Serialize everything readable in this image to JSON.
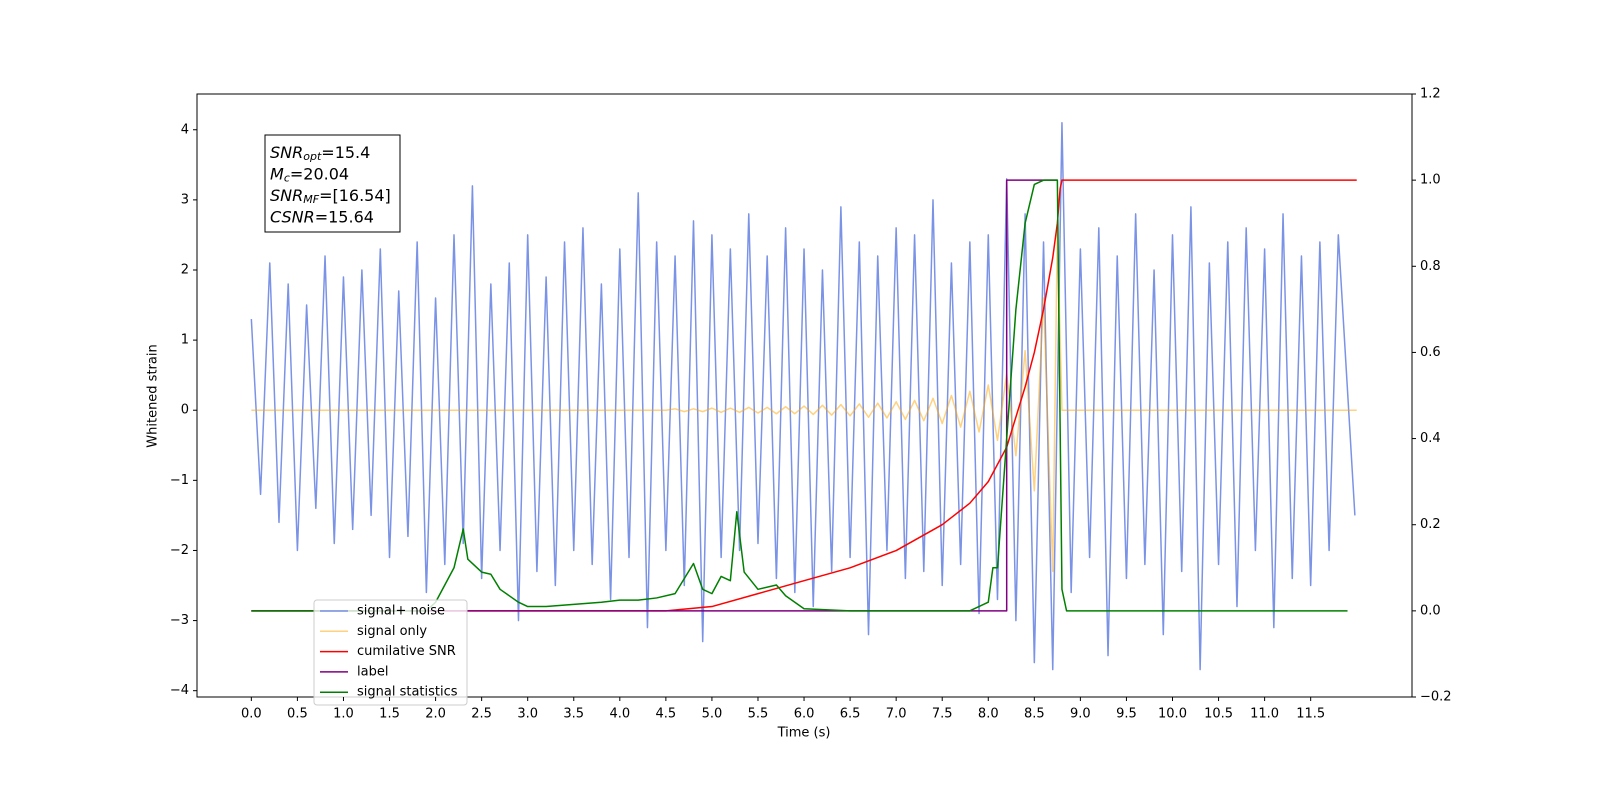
{
  "chart_data": {
    "type": "line",
    "xlabel": "Time (s)",
    "ylabel": "Whitened strain",
    "xlim": [
      -0.59,
      12.6
    ],
    "ylim": [
      -4.09,
      4.51
    ],
    "y2lim": [
      -0.2,
      1.2
    ],
    "xticks": [
      {
        "value": 0,
        "label": "0.0"
      },
      0.5,
      {
        "value": 1,
        "label": "1.0"
      },
      1.5,
      {
        "value": 2,
        "label": "2.0"
      },
      2.5,
      {
        "value": 3,
        "label": "3.0"
      },
      3.5,
      {
        "value": 4,
        "label": "4.0"
      },
      4.5,
      {
        "value": 5,
        "label": "5.0"
      },
      5.5,
      {
        "value": 6,
        "label": "6.0"
      },
      6.5,
      {
        "value": 7,
        "label": "7.0"
      },
      7.5,
      {
        "value": 8,
        "label": "8.0"
      },
      8.5,
      {
        "value": 9,
        "label": "9.0"
      },
      9.5,
      {
        "value": 10,
        "label": "10.0"
      },
      10.5,
      {
        "value": 11,
        "label": "11.0"
      },
      11.5
    ],
    "yticks": [
      {
        "value": -4,
        "label": "−4"
      },
      {
        "value": -3,
        "label": "−3"
      },
      {
        "value": -2,
        "label": "−2"
      },
      {
        "value": -1,
        "label": "−1"
      },
      0,
      1,
      2,
      3,
      4
    ],
    "y2ticks": [
      {
        "value": -0.2,
        "label": "−0.2"
      },
      {
        "value": 0,
        "label": "0.0"
      },
      0.2,
      0.4,
      0.6,
      0.8,
      {
        "value": 1,
        "label": "1.0"
      },
      1.2
    ],
    "annotation": [
      {
        "base": "SNR",
        "sub": "opt",
        "text": "=15.4"
      },
      {
        "base": "M",
        "sub": "c",
        "text": "=20.04"
      },
      {
        "base": "SNR",
        "sub": "MF",
        "text": "=[16.54]"
      },
      {
        "base": "CSNR",
        "sub": null,
        "text": "=15.64"
      }
    ],
    "legend": "lower left",
    "series": [
      {
        "name": "signal+ noise",
        "color": "#7b93e6",
        "alpha": 1,
        "axis": "y",
        "x": [
          0,
          0.1,
          0.2,
          0.3,
          0.4,
          0.5,
          0.6,
          0.7,
          0.8,
          0.9,
          1,
          1.1,
          1.2,
          1.3,
          1.4,
          1.5,
          1.6,
          1.7,
          1.8,
          1.9,
          2,
          2.1,
          2.2,
          2.3,
          2.4,
          2.5,
          2.6,
          2.7,
          2.8,
          2.9,
          3,
          3.1,
          3.2,
          3.3,
          3.4,
          3.5,
          3.6,
          3.7,
          3.8,
          3.9,
          4,
          4.1,
          4.2,
          4.3,
          4.4,
          4.5,
          4.6,
          4.7,
          4.8,
          4.9,
          5,
          5.1,
          5.2,
          5.3,
          5.4,
          5.5,
          5.6,
          5.7,
          5.8,
          5.9,
          6,
          6.1,
          6.2,
          6.3,
          6.4,
          6.5,
          6.6,
          6.7,
          6.8,
          6.9,
          7,
          7.1,
          7.2,
          7.3,
          7.4,
          7.5,
          7.6,
          7.7,
          7.8,
          7.9,
          8,
          8.1,
          8.2,
          8.3,
          8.4,
          8.5,
          8.6,
          8.7,
          8.8,
          8.9,
          9,
          9.1,
          9.2,
          9.3,
          9.4,
          9.5,
          9.6,
          9.7,
          9.8,
          9.9,
          10,
          10.1,
          10.2,
          10.3,
          10.4,
          10.5,
          10.6,
          10.7,
          10.8,
          10.9,
          11,
          11.1,
          11.2,
          11.3,
          11.4,
          11.5,
          11.6,
          11.7,
          11.8,
          11.98
        ],
        "values": [
          1.3,
          -1.2,
          2.1,
          -1.6,
          1.8,
          -2.0,
          1.5,
          -1.4,
          2.2,
          -1.9,
          1.9,
          -1.7,
          2.0,
          -1.5,
          2.3,
          -2.1,
          1.7,
          -1.8,
          2.4,
          -2.6,
          1.6,
          -2.2,
          2.5,
          -1.9,
          3.2,
          -2.4,
          1.8,
          -2.0,
          2.1,
          -3.0,
          2.5,
          -2.3,
          1.9,
          -2.5,
          2.4,
          -2.0,
          2.6,
          -2.2,
          1.8,
          -2.7,
          2.3,
          -2.1,
          3.1,
          -3.1,
          2.4,
          -2.0,
          2.2,
          -2.5,
          2.7,
          -3.3,
          2.5,
          -2.1,
          2.3,
          -2.0,
          2.8,
          -1.9,
          2.2,
          -2.4,
          2.6,
          -2.6,
          2.3,
          -2.8,
          2.0,
          -2.3,
          2.9,
          -2.1,
          2.4,
          -3.2,
          2.2,
          -2.0,
          2.6,
          -2.4,
          2.5,
          -2.3,
          3.0,
          -2.5,
          2.1,
          -2.2,
          2.4,
          -2.9,
          2.5,
          -2.7,
          3.3,
          -3.0,
          2.8,
          -3.6,
          2.4,
          -3.7,
          4.1,
          -2.6,
          2.3,
          -2.1,
          2.6,
          -3.5,
          2.2,
          -2.4,
          2.8,
          -2.2,
          2.0,
          -3.2,
          2.5,
          -2.3,
          2.9,
          -3.7,
          2.1,
          -2.2,
          2.4,
          -2.8,
          2.6,
          -2.0,
          2.3,
          -3.1,
          2.8,
          -2.4,
          2.2,
          -2.5,
          2.4,
          -2.0,
          2.5,
          -1.5
        ]
      },
      {
        "name": "signal only",
        "color": "#ffa500",
        "alpha": 0.5,
        "axis": "y",
        "x": [
          0,
          4.5,
          4.6,
          4.7,
          4.8,
          4.9,
          5,
          5.1,
          5.2,
          5.3,
          5.4,
          5.5,
          5.6,
          5.7,
          5.8,
          5.9,
          6,
          6.1,
          6.2,
          6.3,
          6.4,
          6.5,
          6.6,
          6.7,
          6.8,
          6.9,
          7,
          7.1,
          7.2,
          7.3,
          7.4,
          7.5,
          7.6,
          7.7,
          7.8,
          7.9,
          8,
          8.1,
          8.2,
          8.3,
          8.4,
          8.5,
          8.6,
          8.7,
          8.75,
          8.8,
          12
        ],
        "values": [
          0,
          0,
          0.02,
          -0.02,
          0.02,
          -0.02,
          0.03,
          -0.03,
          0.03,
          -0.03,
          0.04,
          -0.04,
          0.04,
          -0.05,
          0.05,
          -0.05,
          0.06,
          -0.06,
          0.07,
          -0.07,
          0.08,
          -0.08,
          0.09,
          -0.1,
          0.1,
          -0.11,
          0.12,
          -0.13,
          0.14,
          -0.15,
          0.17,
          -0.19,
          0.21,
          -0.24,
          0.27,
          -0.31,
          0.36,
          -0.43,
          0.52,
          -0.65,
          0.85,
          -1.15,
          1.6,
          -2.3,
          2.6,
          0,
          0
        ]
      },
      {
        "name": "cumilative SNR",
        "color": "#ff0000",
        "alpha": 1,
        "axis": "y2",
        "x": [
          0,
          4.5,
          5,
          5.5,
          6,
          6.5,
          7,
          7.5,
          7.8,
          8,
          8.2,
          8.3,
          8.4,
          8.5,
          8.6,
          8.7,
          8.75,
          8.78,
          8.8,
          12
        ],
        "values": [
          0,
          0,
          0.01,
          0.04,
          0.07,
          0.1,
          0.14,
          0.2,
          0.25,
          0.3,
          0.38,
          0.45,
          0.52,
          0.6,
          0.7,
          0.82,
          0.9,
          0.98,
          1,
          1
        ]
      },
      {
        "name": "label",
        "color": "#800080",
        "alpha": 1,
        "axis": "y2",
        "x": [
          0,
          8.2,
          8.2,
          8.75
        ],
        "values": [
          0,
          0,
          1,
          1
        ]
      },
      {
        "name": "signal statistics",
        "color": "#008000",
        "alpha": 1,
        "axis": "y2",
        "x": [
          0,
          1.9,
          2,
          2.1,
          2.2,
          2.3,
          2.35,
          2.5,
          2.6,
          2.7,
          2.9,
          3,
          3.2,
          3.5,
          3.8,
          4,
          4.2,
          4.4,
          4.6,
          4.8,
          4.9,
          5,
          5.1,
          5.2,
          5.27,
          5.35,
          5.5,
          5.7,
          5.8,
          6,
          6.5,
          7.8,
          8,
          8.05,
          8.1,
          8.2,
          8.3,
          8.4,
          8.5,
          8.6,
          8.75,
          8.8,
          8.85,
          11.9
        ],
        "values": [
          0,
          0,
          0.02,
          0.06,
          0.1,
          0.19,
          0.12,
          0.09,
          0.085,
          0.05,
          0.02,
          0.01,
          0.01,
          0.015,
          0.02,
          0.025,
          0.025,
          0.03,
          0.04,
          0.11,
          0.05,
          0.04,
          0.08,
          0.07,
          0.23,
          0.09,
          0.05,
          0.06,
          0.035,
          0.005,
          0,
          0,
          0.02,
          0.1,
          0.1,
          0.4,
          0.7,
          0.9,
          0.99,
          1,
          1,
          0.05,
          0,
          0
        ]
      }
    ]
  }
}
